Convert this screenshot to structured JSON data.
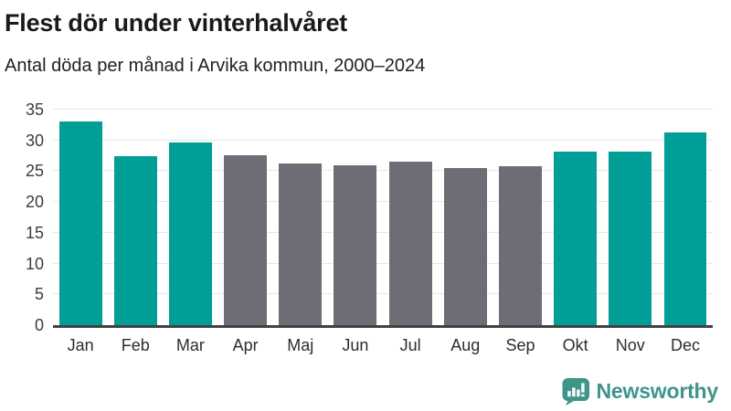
{
  "header": {
    "title": "Flest dör under vinterhalvåret",
    "subtitle": "Antal döda per månad i Arvika kommun, 2000–2024"
  },
  "chart_data": {
    "type": "bar",
    "title": "Flest dör under vinterhalvåret",
    "subtitle": "Antal döda per månad i Arvika kommun, 2000–2024",
    "categories": [
      "Jan",
      "Feb",
      "Mar",
      "Apr",
      "Maj",
      "Jun",
      "Jul",
      "Aug",
      "Sep",
      "Okt",
      "Nov",
      "Dec"
    ],
    "values": [
      33.1,
      27.4,
      29.6,
      27.6,
      26.3,
      26.0,
      26.6,
      25.5,
      25.8,
      28.2,
      28.2,
      31.3
    ],
    "highlighted": [
      true,
      true,
      true,
      false,
      false,
      false,
      false,
      false,
      false,
      true,
      true,
      true
    ],
    "xlabel": "",
    "ylabel": "",
    "ylim": [
      0,
      35
    ],
    "yticks": [
      0,
      5,
      10,
      15,
      20,
      25,
      30,
      35
    ],
    "grid": true,
    "legend": "none",
    "colors": {
      "highlight": "#009e96",
      "default": "#6e6c74",
      "gridline": "#e7e7e9",
      "axis": "#414141"
    }
  },
  "footer": {
    "brand": "Newsworthy",
    "brand_color": "#3f948b",
    "logo_icon": "bar-chart-speech-bubble-icon"
  }
}
